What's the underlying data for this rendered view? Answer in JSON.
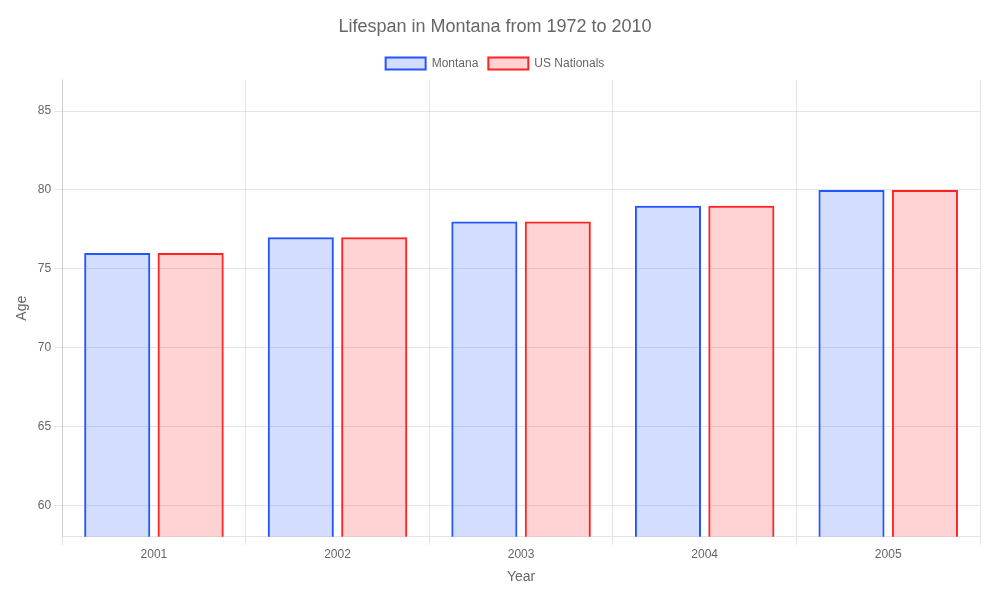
{
  "chart_data": {
    "type": "bar",
    "title": "Lifespan in Montana from 1972 to 2010",
    "x_label": "Year",
    "y_label": "Age",
    "categories": [
      "2001",
      "2002",
      "2003",
      "2004",
      "2005"
    ],
    "series": [
      {
        "name": "Montana",
        "color": "#2255ff",
        "values": [
          76,
          77,
          78,
          79,
          80
        ]
      },
      {
        "name": "US Nationals",
        "color": "#ff2222",
        "values": [
          76,
          77,
          78,
          79,
          80
        ]
      }
    ],
    "ylim": [
      58,
      87
    ],
    "yticks": [
      60,
      65,
      70,
      75,
      80,
      85
    ],
    "grid": true,
    "legend": "top"
  }
}
